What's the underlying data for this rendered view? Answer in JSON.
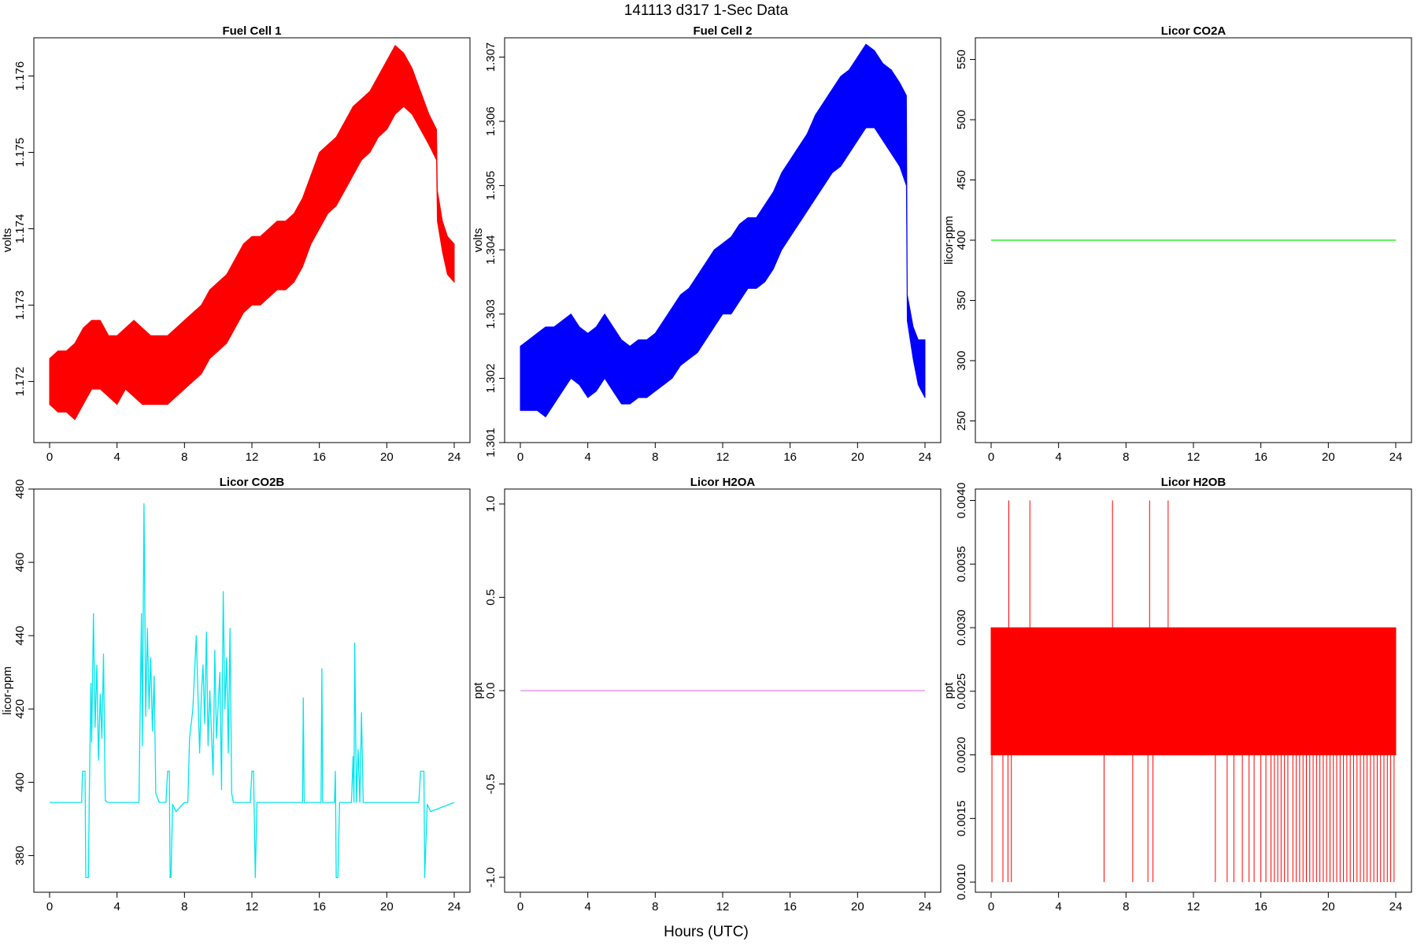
{
  "figure": {
    "title": "141113   d317   1-Sec Data",
    "xlabel": "Hours (UTC)"
  },
  "chart_data": [
    {
      "type": "line",
      "title": "Fuel Cell 1",
      "ylabel": "volts",
      "color": "#ff0000",
      "xlim": [
        0,
        24
      ],
      "ylim": [
        1.1712,
        1.1765
      ],
      "xticks": [
        0,
        4,
        8,
        12,
        16,
        20,
        24
      ],
      "yticks": [
        1.172,
        1.173,
        1.174,
        1.175,
        1.176
      ],
      "ytick_labels": [
        "1.172",
        "1.173",
        "1.174",
        "1.175",
        "1.176"
      ],
      "band": {
        "x": [
          0,
          0.5,
          1,
          1.5,
          2,
          2.5,
          3,
          3.5,
          4,
          4.5,
          5,
          5.5,
          6,
          6.5,
          7,
          7.5,
          8,
          8.5,
          9,
          9.5,
          10,
          10.5,
          11,
          11.5,
          12,
          12.5,
          13,
          13.5,
          14,
          14.5,
          15,
          15.5,
          16,
          16.5,
          17,
          17.5,
          18,
          18.5,
          19,
          19.5,
          20,
          20.5,
          21,
          21.5,
          22,
          22.5,
          22.95,
          23.0,
          23.3,
          23.6,
          24
        ],
        "low": [
          1.1717,
          1.1716,
          1.1716,
          1.1715,
          1.1717,
          1.1719,
          1.1719,
          1.1718,
          1.1717,
          1.1719,
          1.1718,
          1.1717,
          1.1717,
          1.1717,
          1.1717,
          1.1718,
          1.1719,
          1.172,
          1.1721,
          1.1723,
          1.1724,
          1.1725,
          1.1727,
          1.1729,
          1.173,
          1.173,
          1.1731,
          1.1732,
          1.1732,
          1.1733,
          1.1735,
          1.1738,
          1.174,
          1.1742,
          1.1743,
          1.1745,
          1.1747,
          1.1749,
          1.175,
          1.1752,
          1.1753,
          1.1755,
          1.1756,
          1.1755,
          1.1753,
          1.1751,
          1.1749,
          1.1741,
          1.1737,
          1.1734,
          1.1733
        ],
        "high": [
          1.1723,
          1.1724,
          1.1724,
          1.1725,
          1.1727,
          1.1728,
          1.1728,
          1.1726,
          1.1726,
          1.1727,
          1.1728,
          1.1727,
          1.1726,
          1.1726,
          1.1726,
          1.1727,
          1.1728,
          1.1729,
          1.173,
          1.1732,
          1.1733,
          1.1734,
          1.1736,
          1.1738,
          1.1739,
          1.1739,
          1.174,
          1.1741,
          1.1741,
          1.1742,
          1.1744,
          1.1747,
          1.175,
          1.1751,
          1.1752,
          1.1754,
          1.1756,
          1.1757,
          1.1758,
          1.176,
          1.1762,
          1.1764,
          1.1763,
          1.1761,
          1.1758,
          1.1755,
          1.1753,
          1.1745,
          1.1741,
          1.1739,
          1.1738
        ]
      }
    },
    {
      "type": "line",
      "title": "Fuel Cell 2",
      "ylabel": "volts",
      "color": "#0000ff",
      "xlim": [
        0,
        24
      ],
      "ylim": [
        1.301,
        1.3073
      ],
      "xticks": [
        0,
        4,
        8,
        12,
        16,
        20,
        24
      ],
      "yticks": [
        1.301,
        1.302,
        1.303,
        1.304,
        1.305,
        1.306,
        1.307
      ],
      "ytick_labels": [
        "1.301",
        "1.302",
        "1.303",
        "1.304",
        "1.305",
        "1.306",
        "1.307"
      ],
      "band": {
        "x": [
          0,
          0.5,
          1,
          1.5,
          2,
          2.5,
          3,
          3.5,
          4,
          4.5,
          5,
          5.5,
          6,
          6.5,
          7,
          7.5,
          8,
          8.5,
          9,
          9.5,
          10,
          10.5,
          11,
          11.5,
          12,
          12.5,
          13,
          13.5,
          14,
          14.5,
          15,
          15.5,
          16,
          16.5,
          17,
          17.5,
          18,
          18.5,
          19,
          19.5,
          20,
          20.5,
          21,
          21.5,
          22,
          22.5,
          22.9,
          22.95,
          23.3,
          23.6,
          24
        ],
        "low": [
          1.3015,
          1.3015,
          1.3015,
          1.3014,
          1.3016,
          1.3018,
          1.302,
          1.3019,
          1.3017,
          1.3018,
          1.302,
          1.3018,
          1.3016,
          1.3016,
          1.3017,
          1.3017,
          1.3018,
          1.3019,
          1.302,
          1.3022,
          1.3023,
          1.3024,
          1.3026,
          1.3028,
          1.303,
          1.303,
          1.3032,
          1.3034,
          1.3034,
          1.3035,
          1.3037,
          1.304,
          1.3042,
          1.3044,
          1.3046,
          1.3048,
          1.305,
          1.3052,
          1.3053,
          1.3055,
          1.3057,
          1.3059,
          1.3059,
          1.3057,
          1.3055,
          1.3053,
          1.305,
          1.3029,
          1.3023,
          1.3019,
          1.3017
        ],
        "high": [
          1.3025,
          1.3026,
          1.3027,
          1.3028,
          1.3028,
          1.3029,
          1.303,
          1.3028,
          1.3027,
          1.3028,
          1.303,
          1.3028,
          1.3026,
          1.3025,
          1.3026,
          1.3026,
          1.3027,
          1.3029,
          1.3031,
          1.3033,
          1.3034,
          1.3036,
          1.3038,
          1.304,
          1.3041,
          1.3042,
          1.3044,
          1.3045,
          1.3045,
          1.3047,
          1.3049,
          1.3052,
          1.3054,
          1.3056,
          1.3058,
          1.3061,
          1.3063,
          1.3065,
          1.3067,
          1.3068,
          1.307,
          1.3072,
          1.3071,
          1.3069,
          1.3068,
          1.3066,
          1.3064,
          1.3033,
          1.3028,
          1.3026,
          1.3026
        ]
      }
    },
    {
      "type": "line",
      "title": "Licor CO2A",
      "ylabel": "licor-ppm",
      "color": "#00ee00",
      "xlim": [
        0,
        24
      ],
      "ylim": [
        232,
        568
      ],
      "xticks": [
        0,
        4,
        8,
        12,
        16,
        20,
        24
      ],
      "yticks": [
        250,
        300,
        350,
        400,
        450,
        500,
        550
      ],
      "ytick_labels": [
        "250",
        "300",
        "350",
        "400",
        "450",
        "500",
        "550"
      ],
      "x": [
        0,
        24
      ],
      "y": [
        400,
        400
      ]
    },
    {
      "type": "line",
      "title": "Licor CO2B",
      "ylabel": "licor-ppm",
      "color": "#00e5ee",
      "xlim": [
        0,
        24
      ],
      "ylim": [
        370,
        480
      ],
      "xticks": [
        0,
        4,
        8,
        12,
        16,
        20,
        24
      ],
      "yticks": [
        380,
        400,
        420,
        440,
        460,
        480
      ],
      "ytick_labels": [
        "380",
        "400",
        "420",
        "440",
        "460",
        "480"
      ],
      "x": [
        0,
        1.9,
        1.95,
        2.1,
        2.15,
        2.3,
        2.35,
        2.45,
        2.5,
        2.6,
        2.7,
        2.8,
        2.9,
        3.0,
        3.1,
        3.2,
        3.3,
        3.45,
        5.3,
        5.45,
        5.5,
        5.6,
        5.7,
        5.8,
        5.9,
        6.0,
        6.1,
        6.2,
        6.3,
        6.5,
        6.9,
        7.0,
        7.1,
        7.15,
        7.2,
        7.3,
        7.5,
        8.0,
        8.2,
        8.3,
        8.5,
        8.7,
        8.9,
        9.0,
        9.1,
        9.2,
        9.3,
        9.4,
        9.5,
        9.7,
        9.8,
        9.9,
        10.1,
        10.2,
        10.3,
        10.4,
        10.5,
        10.6,
        10.7,
        10.8,
        10.9,
        11.0,
        11.2,
        11.9,
        12.0,
        12.1,
        12.2,
        12.3,
        15.0,
        15.05,
        15.1,
        16.1,
        16.15,
        16.2,
        16.9,
        16.95,
        17.0,
        17.1,
        17.2,
        17.3,
        17.9,
        18.0,
        18.05,
        18.1,
        18.2,
        18.3,
        18.4,
        18.5,
        18.6,
        18.7,
        19.0,
        21.9,
        22.0,
        22.2,
        22.25,
        22.4,
        22.6,
        24
      ],
      "y": [
        394.5,
        394.5,
        403,
        403,
        374,
        374,
        394,
        427,
        411,
        446,
        415,
        432,
        406,
        424,
        412,
        435,
        395,
        394.5,
        394.5,
        446,
        410,
        476,
        418,
        442,
        420,
        434,
        414,
        429,
        397,
        394.5,
        394.5,
        403,
        403,
        374,
        374,
        394,
        392,
        394.5,
        394.5,
        412,
        420,
        440,
        408,
        424,
        432,
        416,
        441,
        410,
        425,
        402,
        436,
        412,
        430,
        398,
        452,
        420,
        434,
        408,
        442,
        397,
        394.5,
        394.5,
        394.5,
        394.5,
        403,
        403,
        374,
        394.5,
        394.5,
        423,
        394.5,
        394.5,
        431,
        394.5,
        394.5,
        403,
        374,
        374,
        394.5,
        394.5,
        394.5,
        407,
        394.5,
        438,
        394.5,
        409,
        394.5,
        419,
        394.5,
        394.5,
        394.5,
        394.5,
        403,
        403,
        374,
        394,
        392,
        394.5
      ]
    },
    {
      "type": "line",
      "title": "Licor H2OA",
      "ylabel": "ppt",
      "color": "#dd88ee",
      "xlim": [
        0,
        24
      ],
      "ylim": [
        -1.08,
        1.08
      ],
      "xticks": [
        0,
        4,
        8,
        12,
        16,
        20,
        24
      ],
      "yticks": [
        -1.0,
        -0.5,
        0.0,
        0.5,
        1.0
      ],
      "ytick_labels": [
        "-1.0",
        "-0.5",
        "0.0",
        "0.5",
        "1.0"
      ],
      "x": [
        0,
        24
      ],
      "y": [
        0,
        0
      ]
    },
    {
      "type": "line",
      "title": "Licor H2OB",
      "ylabel": "ppt",
      "color": "#ff0000",
      "xlim": [
        0,
        24
      ],
      "ylim": [
        0.00092,
        0.00409
      ],
      "xticks": [
        0,
        4,
        8,
        12,
        16,
        20,
        24
      ],
      "yticks": [
        0.001,
        0.0015,
        0.002,
        0.0025,
        0.003,
        0.0035,
        0.004
      ],
      "ytick_labels": [
        "0.0010",
        "0.0015",
        "0.0020",
        "0.0025",
        "0.0030",
        "0.0035",
        "0.0040"
      ],
      "band": {
        "x": [
          0,
          24
        ],
        "low": [
          0.002,
          0.002
        ],
        "high": [
          0.003,
          0.003
        ]
      },
      "spikes_high": [
        1.05,
        2.3,
        7.2,
        9.4,
        10.5
      ],
      "spikes_high_value": 0.004,
      "spikes_low_value": 0.001,
      "spikes_low": [
        0.05,
        0.7,
        1.0,
        1.2,
        6.7,
        8.4,
        9.3,
        9.6,
        13.3,
        14.0,
        14.4,
        14.9,
        15.3,
        15.6,
        16.0,
        16.3,
        16.6,
        16.8,
        17.0,
        17.2,
        17.4,
        17.6,
        17.9,
        18.1,
        18.3,
        18.5,
        18.7,
        18.9,
        19.1,
        19.3,
        19.5,
        19.7,
        19.9,
        20.1,
        20.3,
        20.5,
        20.7,
        20.9,
        21.1,
        21.3,
        21.5,
        21.7,
        21.9,
        22.1,
        22.3,
        22.5,
        22.7,
        22.9,
        23.1,
        23.3,
        23.5,
        23.7,
        23.9
      ]
    }
  ]
}
